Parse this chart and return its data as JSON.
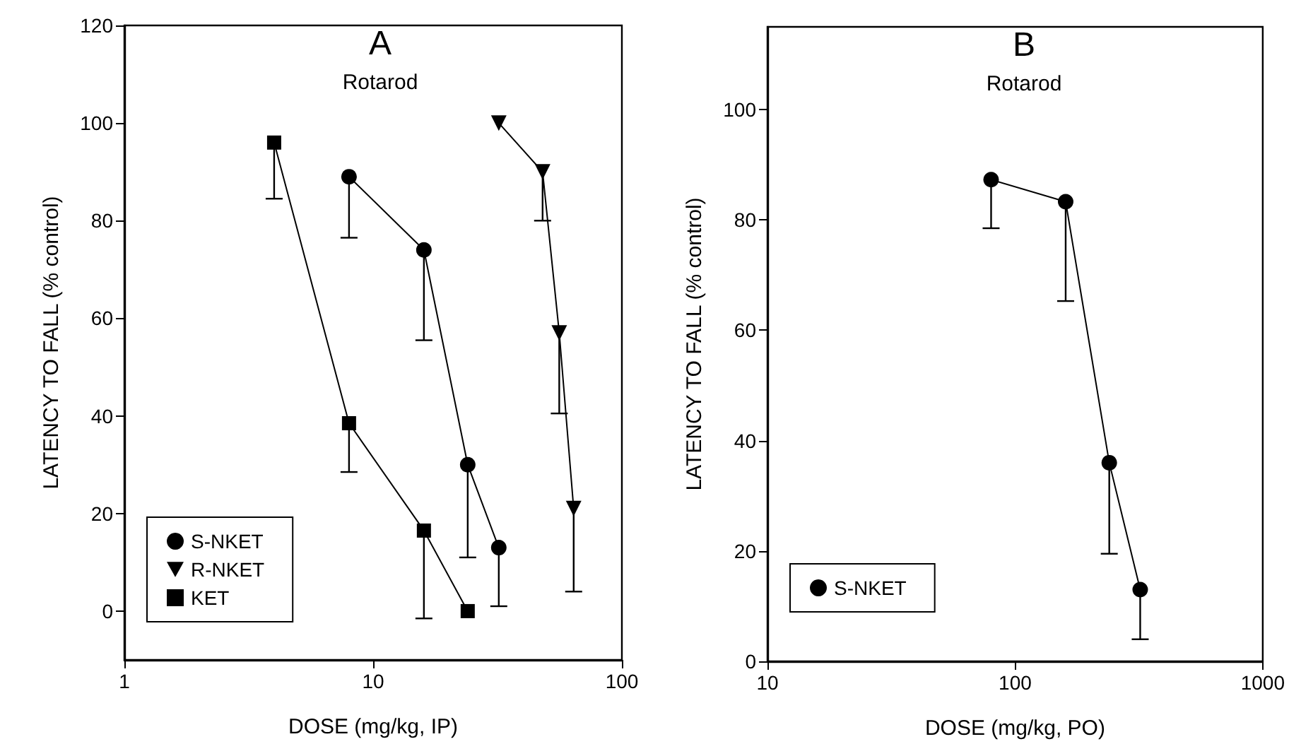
{
  "chart_data": [
    {
      "type": "line",
      "title": "A",
      "subtitle": "Rotarod",
      "xlabel": "DOSE (mg/kg, IP)",
      "ylabel": "LATENCY TO FALL (% control)",
      "log": "x",
      "xlim": [
        1,
        100
      ],
      "xticks": [
        1,
        10,
        100
      ],
      "ylim": [
        -10,
        120
      ],
      "yticks": [
        0,
        20,
        40,
        60,
        80,
        100,
        120
      ],
      "grid": false,
      "legend": "bottom left",
      "series": [
        {
          "name": "S-NKET",
          "color": "#000000",
          "marker": "circle",
          "x": [
            8,
            16,
            24,
            32
          ],
          "values": [
            89,
            74,
            30,
            13
          ],
          "errors": [
            [
              76.5,
              89
            ],
            [
              55.5,
              74
            ],
            [
              11,
              30
            ],
            [
              1,
              13
            ]
          ]
        },
        {
          "name": "R-NKET",
          "color": "#000000",
          "marker": "triangle",
          "x": [
            32,
            48,
            56,
            64
          ],
          "values": [
            100,
            90,
            57,
            21
          ],
          "errors": [
            null,
            [
              80,
              90
            ],
            [
              40.5,
              57
            ],
            [
              4,
              21
            ]
          ]
        },
        {
          "name": "KET",
          "color": "#000000",
          "marker": "square",
          "x": [
            4,
            8,
            16,
            24
          ],
          "values": [
            96,
            38.5,
            16.5,
            0
          ],
          "errors": [
            [
              84.5,
              96
            ],
            [
              28.5,
              38.5
            ],
            [
              -1.5,
              16.5
            ],
            null
          ]
        }
      ]
    },
    {
      "type": "line",
      "title": "B",
      "subtitle": "Rotarod",
      "xlabel": "DOSE (mg/kg, PO)",
      "ylabel": "LATENCY TO FALL (% control)",
      "log": "x",
      "xlim": [
        10,
        1000
      ],
      "xticks": [
        10,
        100,
        1000
      ],
      "ylim": [
        0,
        115
      ],
      "yticks": [
        0,
        20,
        40,
        60,
        80,
        100
      ],
      "grid": false,
      "legend": "bottom left",
      "series": [
        {
          "name": "S-NKET",
          "color": "#000000",
          "marker": "circle",
          "x": [
            80,
            160,
            240,
            320
          ],
          "values": [
            87.3,
            83.3,
            36,
            13
          ],
          "errors": [
            [
              78.5,
              87.3
            ],
            [
              65.3,
              83.3
            ],
            [
              19.5,
              36
            ],
            [
              4,
              13
            ]
          ]
        }
      ]
    }
  ]
}
